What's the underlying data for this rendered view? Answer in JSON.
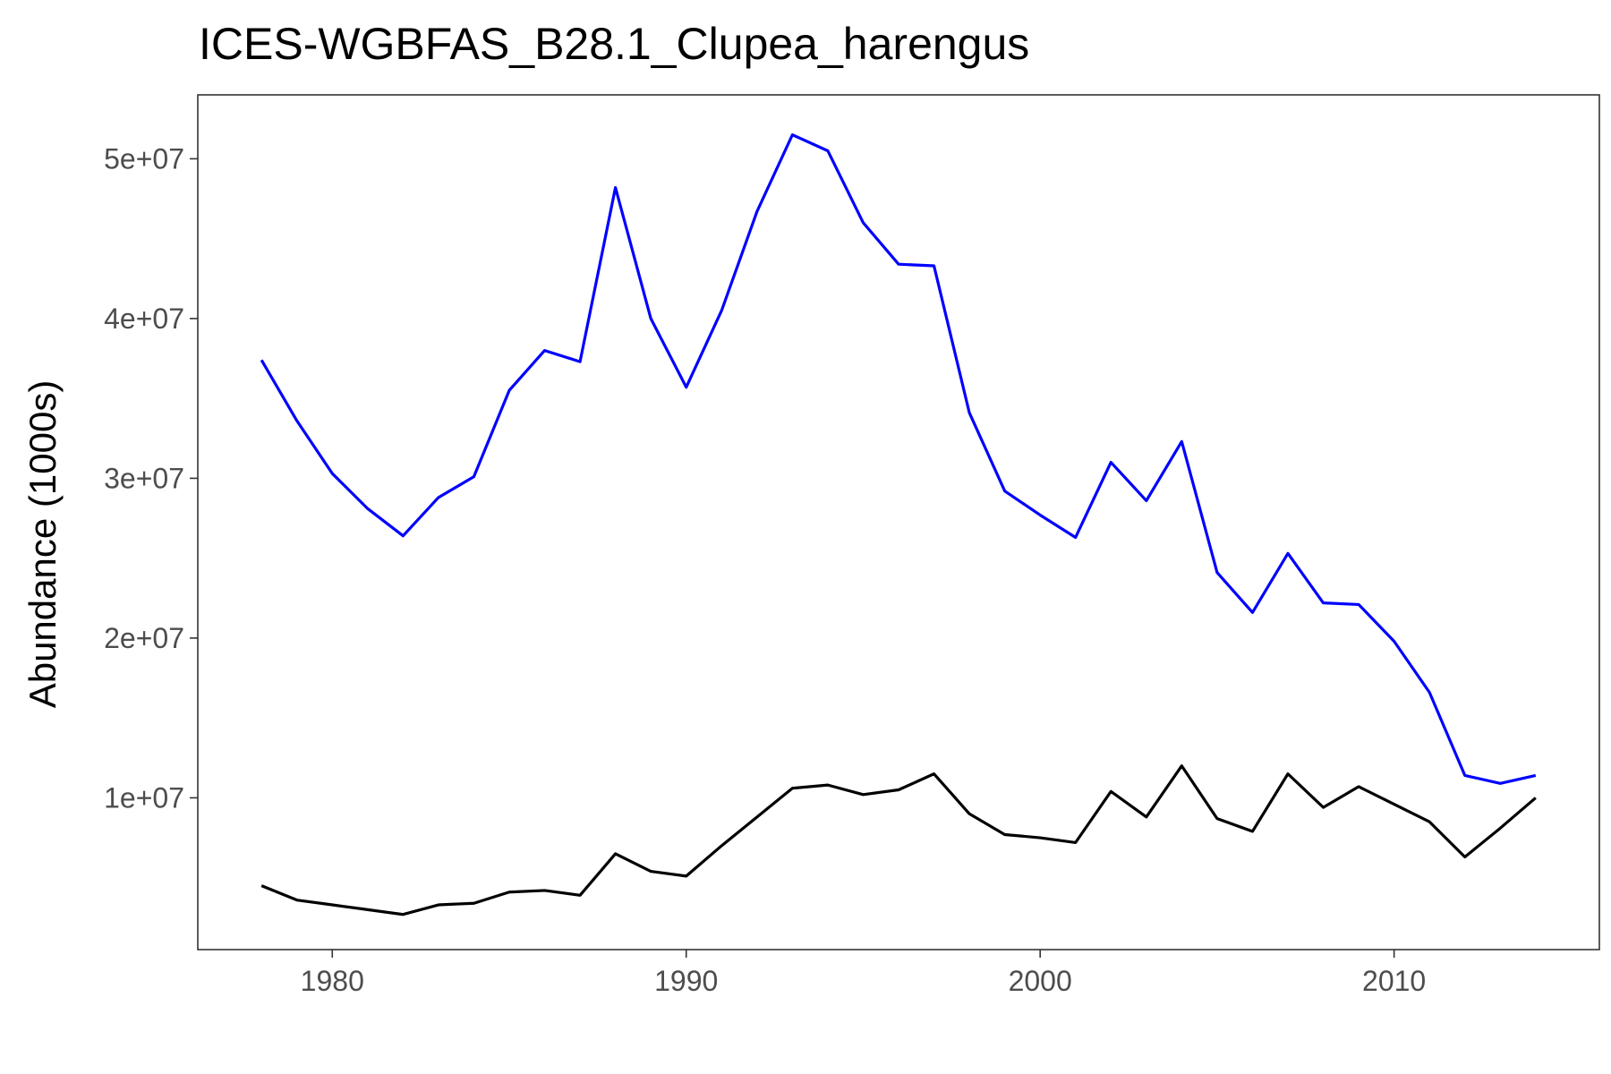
{
  "chart_data": {
    "type": "line",
    "title": "ICES-WGBFAS_B28.1_Clupea_harengus",
    "xlabel": "",
    "ylabel": "Abundance (1000s)",
    "xlim": [
      1976.2,
      2015.8
    ],
    "ylim": [
      500000,
      54000000
    ],
    "x_ticks": [
      1980,
      1990,
      2000,
      2010
    ],
    "x_tick_labels": [
      "1980",
      "1990",
      "2000",
      "2010"
    ],
    "y_ticks": [
      10000000,
      20000000,
      30000000,
      40000000,
      50000000
    ],
    "y_tick_labels": [
      "1e+07",
      "2e+07",
      "3e+07",
      "4e+07",
      "5e+07"
    ],
    "grid": false,
    "legend": "none",
    "x": [
      1978,
      1979,
      1980,
      1981,
      1982,
      1983,
      1984,
      1985,
      1986,
      1987,
      1988,
      1989,
      1990,
      1991,
      1992,
      1993,
      1994,
      1995,
      1996,
      1997,
      1998,
      1999,
      2000,
      2001,
      2002,
      2003,
      2004,
      2005,
      2006,
      2007,
      2008,
      2009,
      2010,
      2011,
      2012,
      2013,
      2014
    ],
    "series": [
      {
        "color": "#0000ff",
        "values": [
          37400000,
          33600000,
          30300000,
          28100000,
          26400000,
          28800000,
          30100000,
          35500000,
          38000000,
          37300000,
          48200000,
          40000000,
          35700000,
          40500000,
          46700000,
          51500000,
          50500000,
          46000000,
          43400000,
          43300000,
          34100000,
          29200000,
          27700000,
          26300000,
          31000000,
          28600000,
          32300000,
          24100000,
          21600000,
          25300000,
          22200000,
          22100000,
          19800000,
          16600000,
          11400000,
          10900000,
          11400000
        ]
      },
      {
        "color": "#000000",
        "values": [
          4500000,
          3600000,
          3300000,
          3000000,
          2700000,
          3300000,
          3400000,
          4100000,
          4200000,
          3900000,
          6500000,
          5400000,
          5100000,
          7000000,
          8800000,
          10600000,
          10800000,
          10200000,
          10500000,
          11500000,
          9000000,
          7700000,
          7500000,
          7200000,
          10400000,
          8800000,
          12000000,
          8700000,
          7900000,
          11500000,
          9400000,
          10700000,
          9600000,
          8500000,
          6300000,
          8100000,
          10000000
        ]
      }
    ]
  }
}
